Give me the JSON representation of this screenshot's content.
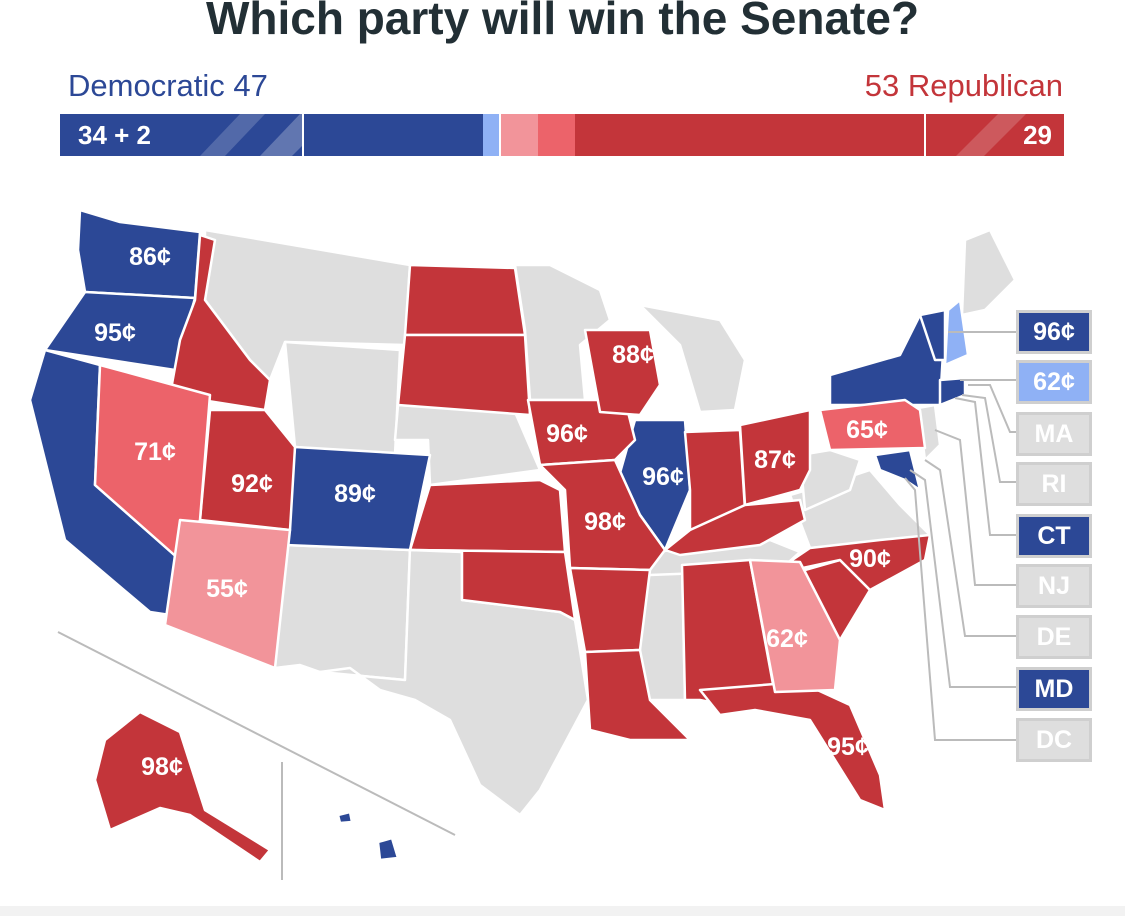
{
  "title": "Which party will win the Senate?",
  "dem_label": "Democratic 47",
  "rep_label": "53 Republican",
  "seat_bar": {
    "dem_not_up_label": "34 + 2",
    "rep_not_up_label": "29",
    "segments": [
      {
        "party": "dem-not-up",
        "color": "#2c4896"
      },
      {
        "party": "dem-safe",
        "color": "#2c4896"
      },
      {
        "party": "dem-lean",
        "color": "#8fb1f5"
      },
      {
        "party": "rep-tossup",
        "color": "#f2949a"
      },
      {
        "party": "rep-lean",
        "color": "#ec636a"
      },
      {
        "party": "rep-safe",
        "color": "#c3353a"
      },
      {
        "party": "rep-not-up",
        "color": "#c3353a"
      }
    ]
  },
  "colors": {
    "dem_strong": "#2c4896",
    "dem_lean": "#8fb1f5",
    "rep_strong": "#c3353a",
    "rep_lean": "#ec636a",
    "rep_tilt": "#f2949a",
    "no_race": "#dedede"
  },
  "states": [
    {
      "name": "WA",
      "price": "86¢",
      "party": "dem_strong"
    },
    {
      "name": "OR",
      "price": "95¢",
      "party": "dem_strong"
    },
    {
      "name": "CA",
      "price": "",
      "party": "dem_strong"
    },
    {
      "name": "NV",
      "price": "71¢",
      "party": "rep_lean"
    },
    {
      "name": "AZ",
      "price": "55¢",
      "party": "rep_tilt"
    },
    {
      "name": "ID",
      "price": "",
      "party": "rep_strong"
    },
    {
      "name": "UT",
      "price": "92¢",
      "party": "rep_strong"
    },
    {
      "name": "CO",
      "price": "89¢",
      "party": "dem_strong"
    },
    {
      "name": "ND",
      "price": "",
      "party": "rep_strong"
    },
    {
      "name": "SD",
      "price": "",
      "party": "rep_strong"
    },
    {
      "name": "KS",
      "price": "",
      "party": "rep_strong"
    },
    {
      "name": "OK",
      "price": "",
      "party": "rep_strong"
    },
    {
      "name": "IA",
      "price": "96¢",
      "party": "rep_strong"
    },
    {
      "name": "MO",
      "price": "98¢",
      "party": "rep_strong"
    },
    {
      "name": "AR",
      "price": "",
      "party": "rep_strong"
    },
    {
      "name": "LA",
      "price": "",
      "party": "rep_strong"
    },
    {
      "name": "WI",
      "price": "88¢",
      "party": "rep_strong"
    },
    {
      "name": "IL",
      "price": "96¢",
      "party": "dem_strong"
    },
    {
      "name": "IN",
      "price": "",
      "party": "rep_strong"
    },
    {
      "name": "OH",
      "price": "87¢",
      "party": "rep_strong"
    },
    {
      "name": "KY",
      "price": "",
      "party": "rep_strong"
    },
    {
      "name": "AL",
      "price": "",
      "party": "rep_strong"
    },
    {
      "name": "GA",
      "price": "62¢",
      "party": "rep_tilt"
    },
    {
      "name": "FL",
      "price": "95¢",
      "party": "rep_strong"
    },
    {
      "name": "SC",
      "price": "",
      "party": "rep_strong"
    },
    {
      "name": "NC",
      "price": "90¢",
      "party": "rep_strong"
    },
    {
      "name": "PA",
      "price": "65¢",
      "party": "rep_lean"
    },
    {
      "name": "NY",
      "price": "",
      "party": "dem_strong"
    },
    {
      "name": "AK",
      "price": "98¢",
      "party": "rep_strong"
    },
    {
      "name": "HI",
      "price": "",
      "party": "dem_strong"
    }
  ],
  "small_states": [
    {
      "label": "96¢",
      "party": "dem_strong"
    },
    {
      "label": "62¢",
      "party": "dem_lean"
    },
    {
      "label": "MA",
      "party": "no_race"
    },
    {
      "label": "RI",
      "party": "no_race"
    },
    {
      "label": "CT",
      "party": "dem_strong"
    },
    {
      "label": "NJ",
      "party": "no_race"
    },
    {
      "label": "DE",
      "party": "no_race"
    },
    {
      "label": "MD",
      "party": "dem_strong"
    },
    {
      "label": "DC",
      "party": "no_race"
    }
  ]
}
